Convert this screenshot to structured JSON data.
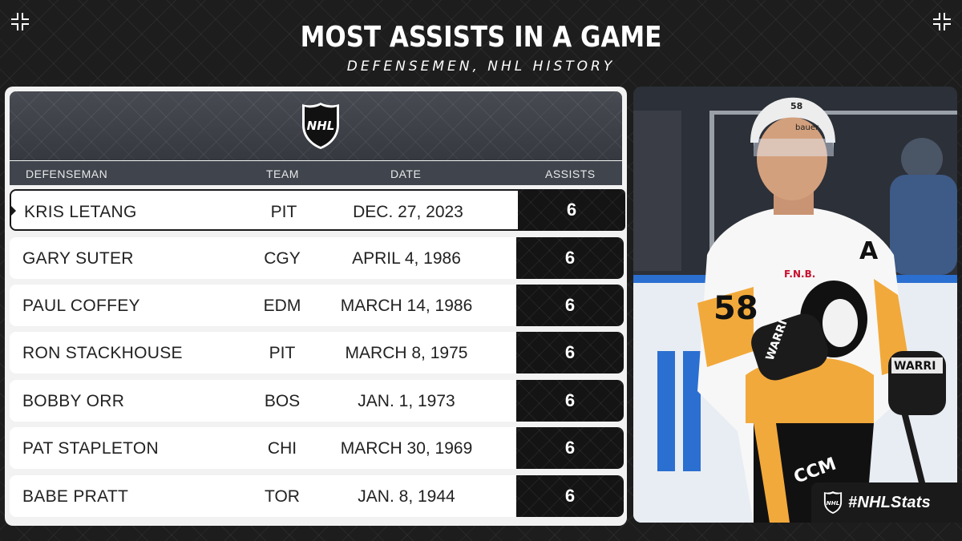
{
  "header": {
    "title": "MOST ASSISTS IN A GAME",
    "subtitle": "DEFENSEMEN, NHL HISTORY"
  },
  "logo": {
    "icon": "nhl-shield-icon",
    "text": "NHL"
  },
  "columns": {
    "name": "DEFENSEMAN",
    "team": "TEAM",
    "date": "DATE",
    "assists": "ASSISTS"
  },
  "rows": [
    {
      "name": "KRIS LETANG",
      "team": "PIT",
      "date": "DEC. 27, 2023",
      "assists": "6",
      "highlighted": true
    },
    {
      "name": "GARY SUTER",
      "team": "CGY",
      "date": "APRIL 4, 1986",
      "assists": "6"
    },
    {
      "name": "PAUL COFFEY",
      "team": "EDM",
      "date": "MARCH 14, 1986",
      "assists": "6"
    },
    {
      "name": "RON STACKHOUSE",
      "team": "PIT",
      "date": "MARCH 8, 1975",
      "assists": "6"
    },
    {
      "name": "BOBBY ORR",
      "team": "BOS",
      "date": "JAN. 1, 1973",
      "assists": "6"
    },
    {
      "name": "PAT STAPLETON",
      "team": "CHI",
      "date": "MARCH 30, 1969",
      "assists": "6"
    },
    {
      "name": "BABE PRATT",
      "team": "TOR",
      "date": "JAN. 8, 1944",
      "assists": "6"
    }
  ],
  "photo": {
    "jersey_number": "58",
    "captain_letter": "A",
    "helmet_brand": "bauer",
    "glove_brand": "WARRI",
    "pants_brand": "CCM",
    "sponsor": "F.N.B."
  },
  "footer": {
    "hashtag": "#NHLStats"
  },
  "colors": {
    "background": "#1e1e1e",
    "panel": "#f2f2f2",
    "header_bar": "#3f444d",
    "assist_cell": "#141414",
    "penguins_gold": "#f2a93b"
  }
}
